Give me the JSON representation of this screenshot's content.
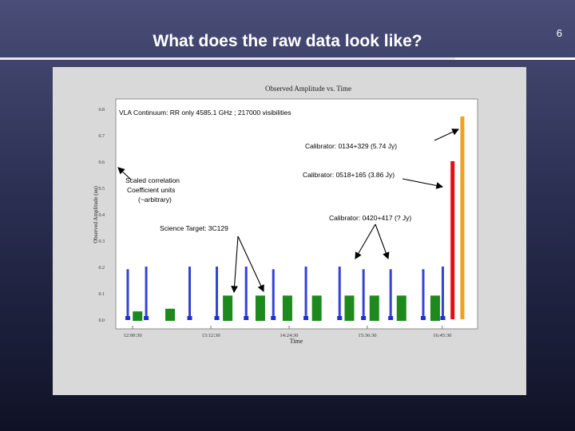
{
  "slide": {
    "title": "What does the raw data look like?",
    "number": "6"
  },
  "colors": {
    "blue": "#1f2fd0",
    "green": "#1e8a1e",
    "red": "#e01010",
    "orange": "#f0a020",
    "panel": "#ffffff",
    "figure_bg": "#d9d9d9"
  },
  "chart_data": {
    "type": "scatter",
    "title": "Observed Amplitude vs. Time",
    "xlabel": "Time",
    "ylabel": "Observed Amplitude (uu)",
    "ylim": [
      0,
      0.8
    ],
    "yticks": [
      "0.8",
      "0.7",
      "0.6",
      "0.5",
      "0.4",
      "0.3",
      "0.2",
      "0.1",
      "0.0"
    ],
    "xticks": [
      "12:00:30",
      "13:12:30",
      "14:24:30",
      "15:36:30",
      "16:45:30"
    ],
    "annotations": {
      "header": "VLA Continuum: RR only  4585.1 GHz ; 217000 visibilities",
      "cal_0134": "Calibrator: 0134+329 (5.74 Jy)",
      "cal_0518": "Calibrator: 0518+165 (3.86 Jy)",
      "cal_0420": "Calibrator: 0420+417 (? Jy)",
      "units_1": "Scaled correlation",
      "units_2": "Coefficient units",
      "units_3": "(~arbitrary)",
      "science": "Science Target: 3C129"
    },
    "series": [
      {
        "color": "blue",
        "x": [
          "11:56",
          "12:13",
          "12:53",
          "13:18",
          "13:45",
          "14:10",
          "14:40",
          "15:11",
          "15:33",
          "15:58",
          "16:28",
          "16:46"
        ],
        "y_top": [
          0.19,
          0.2,
          0.2,
          0.2,
          0.2,
          0.19,
          0.2,
          0.2,
          0.19,
          0.19,
          0.19,
          0.2
        ],
        "y_bottom": [
          0.0,
          0.0,
          0.0,
          0.0,
          0.0,
          0.0,
          0.0,
          0.0,
          0.0,
          0.0,
          0.0,
          0.0
        ]
      },
      {
        "color": "green",
        "x": [
          "12:05",
          "12:35",
          "13:28",
          "13:58",
          "14:23",
          "14:50",
          "15:20",
          "15:43",
          "16:08",
          "16:39"
        ],
        "y_top": [
          0.03,
          0.04,
          0.09,
          0.09,
          0.09,
          0.09,
          0.09,
          0.09,
          0.09,
          0.09
        ],
        "y_bottom": [
          0.0,
          0.0,
          0.0,
          0.0,
          0.0,
          0.0,
          0.0,
          0.0,
          0.0,
          0.0
        ]
      },
      {
        "color": "red",
        "x": [
          "16:55"
        ],
        "y_top": [
          0.6
        ],
        "y_bottom": [
          0.0
        ]
      },
      {
        "color": "orange",
        "x": [
          "17:04"
        ],
        "y_top": [
          0.77
        ],
        "y_bottom": [
          0.0
        ]
      }
    ]
  }
}
